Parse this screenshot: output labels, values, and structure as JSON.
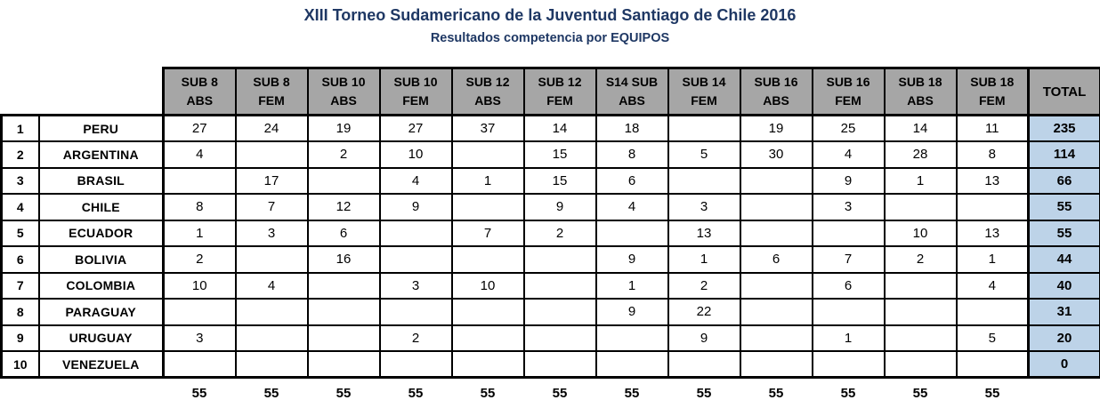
{
  "title": "XIII Torneo Sudamericano de la Juventud Santiago de Chile 2016",
  "subtitle": "Resultados competencia por EQUIPOS",
  "colors": {
    "title_text": "#1F3864",
    "header_bg": "#A6A6A6",
    "total_bg": "#BDD3E8",
    "border": "#000000"
  },
  "table": {
    "category_headers": [
      {
        "line1": "SUB 8",
        "line2": "ABS"
      },
      {
        "line1": "SUB 8",
        "line2": "FEM"
      },
      {
        "line1": "SUB 10",
        "line2": "ABS"
      },
      {
        "line1": "SUB 10",
        "line2": "FEM"
      },
      {
        "line1": "SUB 12",
        "line2": "ABS"
      },
      {
        "line1": "SUB 12",
        "line2": "FEM"
      },
      {
        "line1": "S14 SUB",
        "line2": "ABS"
      },
      {
        "line1": "SUB 14",
        "line2": "FEM"
      },
      {
        "line1": "SUB 16",
        "line2": "ABS"
      },
      {
        "line1": "SUB 16",
        "line2": "FEM"
      },
      {
        "line1": "SUB 18",
        "line2": "ABS"
      },
      {
        "line1": "SUB 18",
        "line2": "FEM"
      }
    ],
    "total_header": "TOTAL",
    "rows": [
      {
        "rank": "1",
        "country": "PERU",
        "values": [
          "27",
          "24",
          "19",
          "27",
          "37",
          "14",
          "18",
          "",
          "19",
          "25",
          "14",
          "11"
        ],
        "total": "235"
      },
      {
        "rank": "2",
        "country": "ARGENTINA",
        "values": [
          "4",
          "",
          "2",
          "10",
          "",
          "15",
          "8",
          "5",
          "30",
          "4",
          "28",
          "8"
        ],
        "total": "114"
      },
      {
        "rank": "3",
        "country": "BRASIL",
        "values": [
          "",
          "17",
          "",
          "4",
          "1",
          "15",
          "6",
          "",
          "",
          "9",
          "1",
          "13"
        ],
        "total": "66"
      },
      {
        "rank": "4",
        "country": "CHILE",
        "values": [
          "8",
          "7",
          "12",
          "9",
          "",
          "9",
          "4",
          "3",
          "",
          "3",
          "",
          ""
        ],
        "total": "55"
      },
      {
        "rank": "5",
        "country": "ECUADOR",
        "values": [
          "1",
          "3",
          "6",
          "",
          "7",
          "2",
          "",
          "13",
          "",
          "",
          "10",
          "13"
        ],
        "total": "55"
      },
      {
        "rank": "6",
        "country": "BOLIVIA",
        "values": [
          "2",
          "",
          "16",
          "",
          "",
          "",
          "9",
          "1",
          "6",
          "7",
          "2",
          "1"
        ],
        "total": "44"
      },
      {
        "rank": "7",
        "country": "COLOMBIA",
        "values": [
          "10",
          "4",
          "",
          "3",
          "10",
          "",
          "1",
          "2",
          "",
          "6",
          "",
          "4"
        ],
        "total": "40"
      },
      {
        "rank": "8",
        "country": "PARAGUAY",
        "values": [
          "",
          "",
          "",
          "",
          "",
          "",
          "9",
          "22",
          "",
          "",
          "",
          ""
        ],
        "total": "31"
      },
      {
        "rank": "9",
        "country": "URUGUAY",
        "values": [
          "3",
          "",
          "",
          "2",
          "",
          "",
          "",
          "9",
          "",
          "1",
          "",
          "5"
        ],
        "total": "20"
      },
      {
        "rank": "10",
        "country": "VENEZUELA",
        "values": [
          "",
          "",
          "",
          "",
          "",
          "",
          "",
          "",
          "",
          "",
          "",
          ""
        ],
        "total": "0"
      }
    ],
    "footer_totals": [
      "55",
      "55",
      "55",
      "55",
      "55",
      "55",
      "55",
      "55",
      "55",
      "55",
      "55",
      "55"
    ]
  }
}
